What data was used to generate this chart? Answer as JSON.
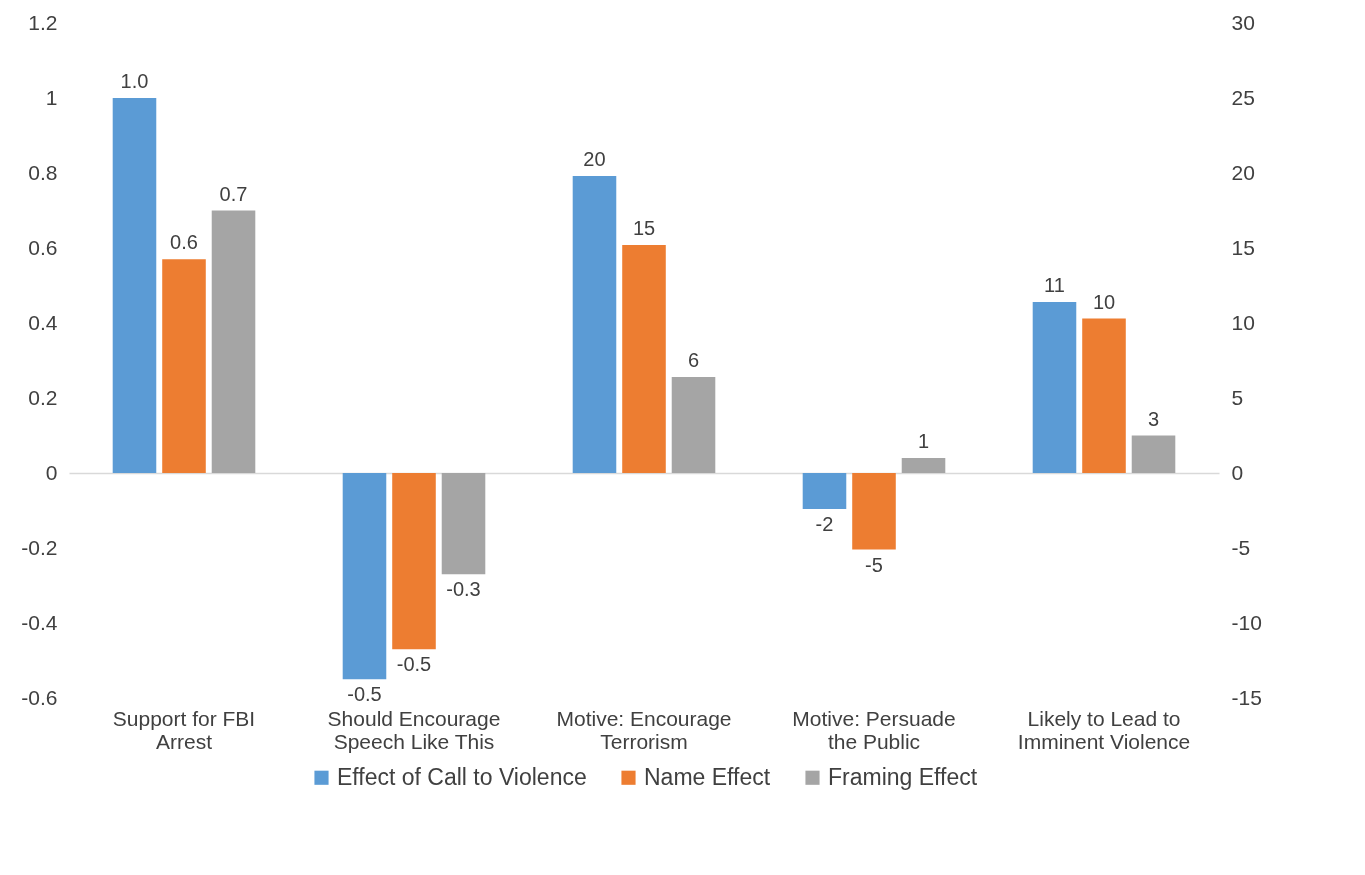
{
  "chart_data": {
    "type": "bar",
    "categories": [
      "Support for FBI Arrest",
      "Should Encourage Speech Like This",
      "Motive: Encourage Terrorism",
      "Motive: Persuade the Public",
      "Likely to Lead to Imminent Violence"
    ],
    "series": [
      {
        "name": "Effect of Call to Violence",
        "color": "#5b9bd5",
        "values": [
          1.0,
          -0.55,
          null,
          null,
          null
        ],
        "value_labels": [
          "1.0",
          "-0.5",
          null,
          null,
          null
        ]
      },
      {
        "name": "Name Effect",
        "color": "#ed7d31",
        "values": [
          0.57,
          -0.47,
          null,
          null,
          null
        ],
        "value_labels": [
          "0.6",
          "-0.5",
          null,
          null,
          null
        ]
      },
      {
        "name": "Framing Effect",
        "color": "#a5a5a5",
        "values": [
          0.7,
          -0.27,
          null,
          null,
          null
        ],
        "value_labels": [
          "0.7",
          "-0.3",
          null,
          null,
          null
        ]
      },
      {
        "color": "#5b9bd5",
        "axis": "y2",
        "values": [
          null,
          null,
          19.8,
          -2.4,
          11.4
        ],
        "value_labels": [
          null,
          null,
          "20",
          "-2",
          "11"
        ]
      },
      {
        "color": "#ed7d31",
        "axis": "y2",
        "values": [
          null,
          null,
          15.2,
          -5.1,
          10.3
        ],
        "value_labels": [
          null,
          null,
          "15",
          "-5",
          "10"
        ]
      },
      {
        "color": "#a5a5a5",
        "axis": "y2",
        "values": [
          null,
          null,
          6.4,
          1.0,
          2.5
        ],
        "value_labels": [
          null,
          null,
          "6",
          "1",
          "3"
        ]
      }
    ],
    "ylim": [
      -0.6,
      1.2
    ],
    "yticks": [
      -0.6,
      -0.4,
      -0.2,
      0,
      0.2,
      0.4,
      0.6,
      0.8,
      1,
      1.2
    ],
    "y2lim": [
      -15,
      30
    ],
    "y2ticks": [
      -15,
      -10,
      -5,
      0,
      5,
      10,
      15,
      20,
      25,
      30
    ],
    "legend": "bottom"
  }
}
